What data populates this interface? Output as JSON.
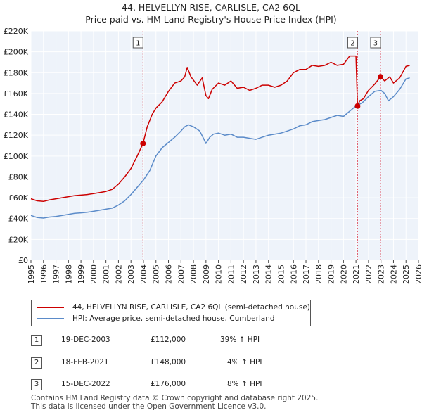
{
  "title_line1": "44, HELVELLYN RISE, CARLISLE, CA2 6QL",
  "title_line2": "Price paid vs. HM Land Registry's House Price Index (HPI)",
  "chart_data": {
    "type": "line",
    "title": "44, HELVELLYN RISE, CARLISLE, CA2 6QL",
    "subtitle": "Price paid vs. HM Land Registry's House Price Index (HPI)",
    "xlabel": "",
    "ylabel": "",
    "xlim": [
      1995,
      2026
    ],
    "ylim": [
      0,
      220000
    ],
    "x_ticks": [
      1995,
      1996,
      1997,
      1998,
      1999,
      2000,
      2001,
      2002,
      2003,
      2004,
      2005,
      2006,
      2007,
      2008,
      2009,
      2010,
      2011,
      2012,
      2013,
      2014,
      2015,
      2016,
      2017,
      2018,
      2019,
      2020,
      2021,
      2022,
      2023,
      2024,
      2025,
      2026
    ],
    "y_ticks": [
      {
        "value": 0,
        "label": "£0"
      },
      {
        "value": 20000,
        "label": "£20K"
      },
      {
        "value": 40000,
        "label": "£40K"
      },
      {
        "value": 60000,
        "label": "£60K"
      },
      {
        "value": 80000,
        "label": "£80K"
      },
      {
        "value": 100000,
        "label": "£100K"
      },
      {
        "value": 120000,
        "label": "£120K"
      },
      {
        "value": 140000,
        "label": "£140K"
      },
      {
        "value": 160000,
        "label": "£160K"
      },
      {
        "value": 180000,
        "label": "£180K"
      },
      {
        "value": 200000,
        "label": "£200K"
      },
      {
        "value": 220000,
        "label": "£220K"
      }
    ],
    "grid": true,
    "series": [
      {
        "name": "44, HELVELLYN RISE, CARLISLE, CA2 6QL (semi-detached house)",
        "color": "#cc0000",
        "x": [
          1995,
          1995.5,
          1996,
          1996.5,
          1997,
          1997.5,
          1998,
          1998.5,
          1999,
          1999.5,
          2000,
          2000.5,
          2001,
          2001.5,
          2002,
          2002.5,
          2003,
          2003.5,
          2003.96,
          2004.3,
          2004.7,
          2005,
          2005.5,
          2006,
          2006.5,
          2007,
          2007.3,
          2007.5,
          2007.8,
          2008.3,
          2008.7,
          2009,
          2009.2,
          2009.5,
          2010,
          2010.5,
          2011,
          2011.5,
          2012,
          2012.5,
          2013,
          2013.5,
          2014,
          2014.5,
          2015,
          2015.5,
          2016,
          2016.5,
          2017,
          2017.5,
          2018,
          2018.5,
          2019,
          2019.5,
          2020,
          2020.5,
          2021.0,
          2021.12,
          2021.3,
          2021.6,
          2022,
          2022.5,
          2022.96,
          2023.3,
          2023.7,
          2024,
          2024.5,
          2025,
          2025.3
        ],
        "y": [
          59000,
          57000,
          56500,
          58000,
          59000,
          60000,
          61000,
          62000,
          62500,
          63000,
          64000,
          65000,
          66000,
          68000,
          73000,
          80000,
          88000,
          100000,
          112000,
          128000,
          140000,
          146000,
          152000,
          162000,
          170000,
          172000,
          176000,
          185000,
          176000,
          168000,
          175000,
          158000,
          155000,
          164000,
          170000,
          168000,
          172000,
          165000,
          166000,
          163000,
          165000,
          168000,
          168000,
          166000,
          168000,
          172000,
          180000,
          183000,
          183000,
          187000,
          186000,
          187000,
          190000,
          187000,
          188000,
          196000,
          196000,
          148000,
          153000,
          155000,
          163000,
          169000,
          176000,
          172000,
          176000,
          170000,
          175000,
          186000,
          187000
        ]
      },
      {
        "name": "HPI: Average price, semi-detached house, Cumberland",
        "color": "#5b8bc9",
        "x": [
          1995,
          1995.5,
          1996,
          1996.5,
          1997,
          1997.5,
          1998,
          1998.5,
          1999,
          1999.5,
          2000,
          2000.5,
          2001,
          2001.5,
          2002,
          2002.5,
          2003,
          2003.5,
          2004,
          2004.5,
          2005,
          2005.5,
          2006,
          2006.5,
          2007,
          2007.3,
          2007.6,
          2008,
          2008.5,
          2008.8,
          2009,
          2009.3,
          2009.6,
          2010,
          2010.5,
          2011,
          2011.5,
          2012,
          2012.5,
          2013,
          2013.5,
          2014,
          2014.5,
          2015,
          2015.5,
          2016,
          2016.5,
          2017,
          2017.5,
          2018,
          2018.5,
          2019,
          2019.5,
          2020,
          2020.5,
          2021,
          2021.5,
          2022,
          2022.5,
          2023,
          2023.3,
          2023.6,
          2024,
          2024.5,
          2025,
          2025.3
        ],
        "y": [
          43000,
          41000,
          40500,
          41500,
          42000,
          43000,
          44000,
          45000,
          45500,
          46000,
          47000,
          48000,
          49000,
          50000,
          53000,
          57000,
          63000,
          70000,
          77000,
          86000,
          100000,
          108000,
          113000,
          118000,
          124000,
          128000,
          130000,
          128000,
          124000,
          117000,
          112000,
          118000,
          121000,
          122000,
          120000,
          121000,
          118000,
          118000,
          117000,
          116000,
          118000,
          120000,
          121000,
          122000,
          124000,
          126000,
          129000,
          130000,
          133000,
          134000,
          135000,
          137000,
          139000,
          138000,
          143000,
          148000,
          151000,
          157000,
          162000,
          163000,
          160000,
          153000,
          157000,
          164000,
          174000,
          175000
        ]
      }
    ],
    "sales": [
      {
        "id": "1",
        "x": 2003.96,
        "y": 112000
      },
      {
        "id": "2",
        "x": 2021.13,
        "y": 148000
      },
      {
        "id": "3",
        "x": 2022.96,
        "y": 176000
      }
    ]
  },
  "legend": {
    "property": "44, HELVELLYN RISE, CARLISLE, CA2 6QL (semi-detached house)",
    "hpi": "HPI: Average price, semi-detached house, Cumberland"
  },
  "transactions": [
    {
      "id": "1",
      "date": "19-DEC-2003",
      "price": "£112,000",
      "hpi": "39% ↑ HPI"
    },
    {
      "id": "2",
      "date": "18-FEB-2021",
      "price": "£148,000",
      "hpi": "4% ↑ HPI"
    },
    {
      "id": "3",
      "date": "15-DEC-2022",
      "price": "£176,000",
      "hpi": "8% ↑ HPI"
    }
  ],
  "footer": {
    "line1": "Contains HM Land Registry data © Crown copyright and database right 2025.",
    "line2": "This data is licensed under the Open Government Licence v3.0."
  }
}
